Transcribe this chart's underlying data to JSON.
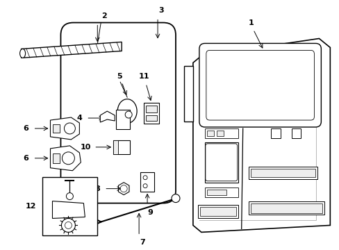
{
  "background_color": "#ffffff",
  "fig_width": 4.89,
  "fig_height": 3.6,
  "dpi": 100,
  "line_color": "#000000",
  "gray_fill": "#d8d8d8",
  "light_gray": "#eeeeee"
}
